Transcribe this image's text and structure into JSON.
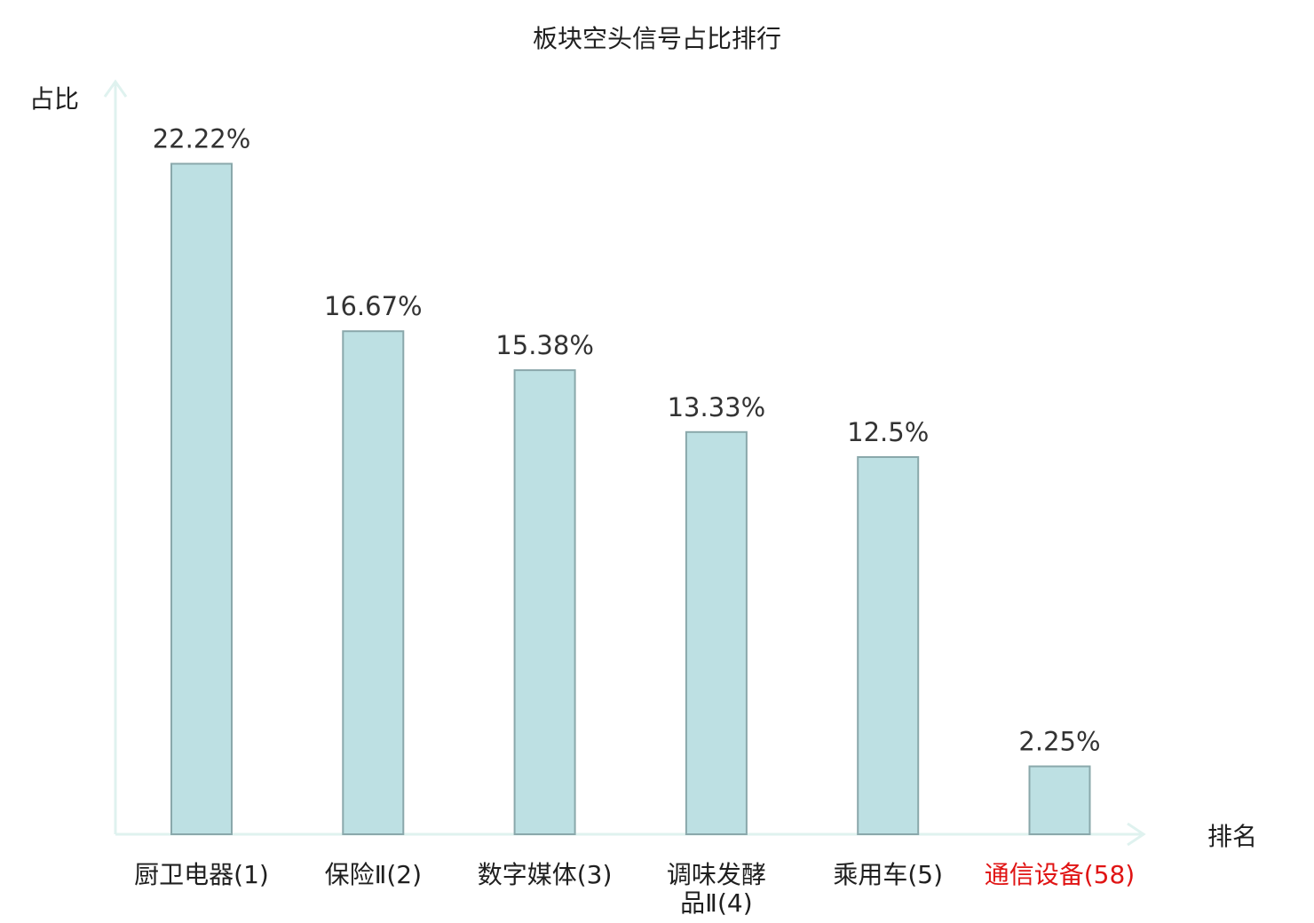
{
  "chart_data": {
    "type": "bar",
    "title": "板块空头信号占比排行",
    "ylabel": "占比",
    "xlabel": "排名",
    "ylim": [
      0,
      27
    ],
    "grid": false,
    "legend": "none",
    "categories": [
      [
        "厨卫电器(1)"
      ],
      [
        "保险Ⅱ(2)"
      ],
      [
        "数字媒体(3)"
      ],
      [
        "调味发酵",
        "品Ⅱ(4)"
      ],
      [
        "乘用车(5)"
      ],
      [
        "通信设备(58)"
      ]
    ],
    "values": [
      22.22,
      16.67,
      15.38,
      13.33,
      12.5,
      2.25
    ],
    "value_labels": [
      "22.22%",
      "16.67%",
      "15.38%",
      "13.33%",
      "12.5%",
      "2.25%"
    ],
    "highlight_index": 5
  },
  "colors": {
    "bar_fill": "#bde0e3",
    "bar_stroke": "#8aa8ab",
    "axis": "#dff2ef",
    "label_default": "#1f1f1f",
    "label_highlight": "#e01414"
  }
}
